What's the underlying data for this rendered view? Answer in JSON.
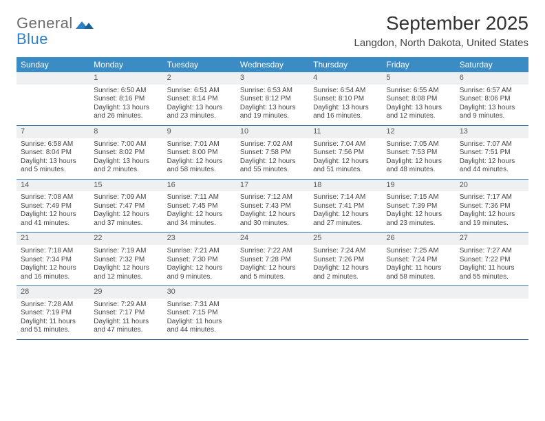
{
  "brand": {
    "line1": "General",
    "line2": "Blue",
    "line1_color": "#6b6b6b",
    "line2_color": "#2f80c3",
    "mark_color": "#2f80c3"
  },
  "title": "September 2025",
  "location": "Langdon, North Dakota, United States",
  "header_bg": "#3b8bc4",
  "header_fg": "#ffffff",
  "daynum_bg": "#eef0f1",
  "rule_color": "#2f6fa3",
  "day_names": [
    "Sunday",
    "Monday",
    "Tuesday",
    "Wednesday",
    "Thursday",
    "Friday",
    "Saturday"
  ],
  "weeks": [
    [
      {
        "n": "",
        "lines": [
          "",
          "",
          "",
          ""
        ]
      },
      {
        "n": "1",
        "lines": [
          "Sunrise: 6:50 AM",
          "Sunset: 8:16 PM",
          "Daylight: 13 hours",
          "and 26 minutes."
        ]
      },
      {
        "n": "2",
        "lines": [
          "Sunrise: 6:51 AM",
          "Sunset: 8:14 PM",
          "Daylight: 13 hours",
          "and 23 minutes."
        ]
      },
      {
        "n": "3",
        "lines": [
          "Sunrise: 6:53 AM",
          "Sunset: 8:12 PM",
          "Daylight: 13 hours",
          "and 19 minutes."
        ]
      },
      {
        "n": "4",
        "lines": [
          "Sunrise: 6:54 AM",
          "Sunset: 8:10 PM",
          "Daylight: 13 hours",
          "and 16 minutes."
        ]
      },
      {
        "n": "5",
        "lines": [
          "Sunrise: 6:55 AM",
          "Sunset: 8:08 PM",
          "Daylight: 13 hours",
          "and 12 minutes."
        ]
      },
      {
        "n": "6",
        "lines": [
          "Sunrise: 6:57 AM",
          "Sunset: 8:06 PM",
          "Daylight: 13 hours",
          "and 9 minutes."
        ]
      }
    ],
    [
      {
        "n": "7",
        "lines": [
          "Sunrise: 6:58 AM",
          "Sunset: 8:04 PM",
          "Daylight: 13 hours",
          "and 5 minutes."
        ]
      },
      {
        "n": "8",
        "lines": [
          "Sunrise: 7:00 AM",
          "Sunset: 8:02 PM",
          "Daylight: 13 hours",
          "and 2 minutes."
        ]
      },
      {
        "n": "9",
        "lines": [
          "Sunrise: 7:01 AM",
          "Sunset: 8:00 PM",
          "Daylight: 12 hours",
          "and 58 minutes."
        ]
      },
      {
        "n": "10",
        "lines": [
          "Sunrise: 7:02 AM",
          "Sunset: 7:58 PM",
          "Daylight: 12 hours",
          "and 55 minutes."
        ]
      },
      {
        "n": "11",
        "lines": [
          "Sunrise: 7:04 AM",
          "Sunset: 7:56 PM",
          "Daylight: 12 hours",
          "and 51 minutes."
        ]
      },
      {
        "n": "12",
        "lines": [
          "Sunrise: 7:05 AM",
          "Sunset: 7:53 PM",
          "Daylight: 12 hours",
          "and 48 minutes."
        ]
      },
      {
        "n": "13",
        "lines": [
          "Sunrise: 7:07 AM",
          "Sunset: 7:51 PM",
          "Daylight: 12 hours",
          "and 44 minutes."
        ]
      }
    ],
    [
      {
        "n": "14",
        "lines": [
          "Sunrise: 7:08 AM",
          "Sunset: 7:49 PM",
          "Daylight: 12 hours",
          "and 41 minutes."
        ]
      },
      {
        "n": "15",
        "lines": [
          "Sunrise: 7:09 AM",
          "Sunset: 7:47 PM",
          "Daylight: 12 hours",
          "and 37 minutes."
        ]
      },
      {
        "n": "16",
        "lines": [
          "Sunrise: 7:11 AM",
          "Sunset: 7:45 PM",
          "Daylight: 12 hours",
          "and 34 minutes."
        ]
      },
      {
        "n": "17",
        "lines": [
          "Sunrise: 7:12 AM",
          "Sunset: 7:43 PM",
          "Daylight: 12 hours",
          "and 30 minutes."
        ]
      },
      {
        "n": "18",
        "lines": [
          "Sunrise: 7:14 AM",
          "Sunset: 7:41 PM",
          "Daylight: 12 hours",
          "and 27 minutes."
        ]
      },
      {
        "n": "19",
        "lines": [
          "Sunrise: 7:15 AM",
          "Sunset: 7:39 PM",
          "Daylight: 12 hours",
          "and 23 minutes."
        ]
      },
      {
        "n": "20",
        "lines": [
          "Sunrise: 7:17 AM",
          "Sunset: 7:36 PM",
          "Daylight: 12 hours",
          "and 19 minutes."
        ]
      }
    ],
    [
      {
        "n": "21",
        "lines": [
          "Sunrise: 7:18 AM",
          "Sunset: 7:34 PM",
          "Daylight: 12 hours",
          "and 16 minutes."
        ]
      },
      {
        "n": "22",
        "lines": [
          "Sunrise: 7:19 AM",
          "Sunset: 7:32 PM",
          "Daylight: 12 hours",
          "and 12 minutes."
        ]
      },
      {
        "n": "23",
        "lines": [
          "Sunrise: 7:21 AM",
          "Sunset: 7:30 PM",
          "Daylight: 12 hours",
          "and 9 minutes."
        ]
      },
      {
        "n": "24",
        "lines": [
          "Sunrise: 7:22 AM",
          "Sunset: 7:28 PM",
          "Daylight: 12 hours",
          "and 5 minutes."
        ]
      },
      {
        "n": "25",
        "lines": [
          "Sunrise: 7:24 AM",
          "Sunset: 7:26 PM",
          "Daylight: 12 hours",
          "and 2 minutes."
        ]
      },
      {
        "n": "26",
        "lines": [
          "Sunrise: 7:25 AM",
          "Sunset: 7:24 PM",
          "Daylight: 11 hours",
          "and 58 minutes."
        ]
      },
      {
        "n": "27",
        "lines": [
          "Sunrise: 7:27 AM",
          "Sunset: 7:22 PM",
          "Daylight: 11 hours",
          "and 55 minutes."
        ]
      }
    ],
    [
      {
        "n": "28",
        "lines": [
          "Sunrise: 7:28 AM",
          "Sunset: 7:19 PM",
          "Daylight: 11 hours",
          "and 51 minutes."
        ]
      },
      {
        "n": "29",
        "lines": [
          "Sunrise: 7:29 AM",
          "Sunset: 7:17 PM",
          "Daylight: 11 hours",
          "and 47 minutes."
        ]
      },
      {
        "n": "30",
        "lines": [
          "Sunrise: 7:31 AM",
          "Sunset: 7:15 PM",
          "Daylight: 11 hours",
          "and 44 minutes."
        ]
      },
      {
        "n": "",
        "lines": [
          "",
          "",
          "",
          ""
        ]
      },
      {
        "n": "",
        "lines": [
          "",
          "",
          "",
          ""
        ]
      },
      {
        "n": "",
        "lines": [
          "",
          "",
          "",
          ""
        ]
      },
      {
        "n": "",
        "lines": [
          "",
          "",
          "",
          ""
        ]
      }
    ]
  ]
}
